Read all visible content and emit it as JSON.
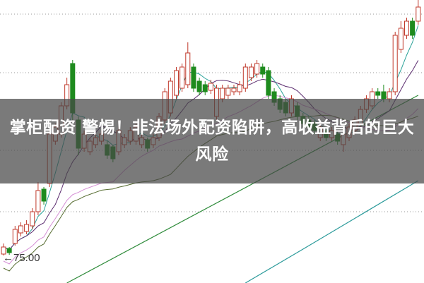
{
  "headline": "掌柜配资 警惕！非法场外配资陷阱，高收益背后的巨大风险",
  "chart_data": {
    "type": "candlestick",
    "title": "",
    "low_marker_label": "75.00",
    "low_marker_value": 75.0,
    "ylim": [
      71.5,
      111.6
    ],
    "grid": "horizontal dotted",
    "gridlines": [
      109.6,
      101.3,
      90.3,
      81.6
    ],
    "colors": {
      "up": "#c0392b",
      "down": "#1e8b1e",
      "ma5": "#2aa198",
      "ma10": "#5b2c6f",
      "ma20": "#d58fd5",
      "ma30": "#556b2f",
      "long1": "#2e8b3a",
      "long2": "#2a9a9a"
    },
    "ohlc": [
      [
        75.6,
        76.6,
        77.1,
        75.4
      ],
      [
        76.4,
        75.8,
        76.6,
        75.5
      ],
      [
        77.1,
        79.1,
        79.6,
        76.8
      ],
      [
        78.6,
        79.6,
        80.1,
        78.1
      ],
      [
        78.8,
        79.8,
        80.4,
        78.4
      ],
      [
        79.6,
        81.6,
        82.1,
        79.1
      ],
      [
        81.6,
        84.6,
        85.8,
        81.1
      ],
      [
        84.8,
        83.1,
        85.1,
        82.6
      ],
      [
        85.6,
        92.6,
        93.1,
        85.1
      ],
      [
        91.6,
        93.6,
        94.1,
        91.1
      ],
      [
        92.6,
        96.6,
        97.1,
        92.1
      ],
      [
        96.6,
        99.6,
        100.6,
        96.1
      ],
      [
        102.6,
        95.6,
        103.1,
        94.6
      ],
      [
        94.6,
        90.6,
        95.1,
        89.6
      ],
      [
        90.6,
        92.6,
        93.1,
        90.1
      ],
      [
        90.1,
        91.6,
        92.1,
        89.6
      ],
      [
        91.1,
        92.1,
        92.6,
        90.6
      ],
      [
        91.6,
        92.6,
        93.1,
        91.1
      ],
      [
        91.1,
        89.6,
        91.6,
        89.1
      ],
      [
        90.8,
        89.1,
        91.1,
        88.6
      ],
      [
        90.1,
        93.1,
        94.6,
        89.6
      ],
      [
        91.1,
        92.1,
        92.6,
        90.6
      ],
      [
        91.6,
        93.1,
        93.6,
        91.1
      ],
      [
        91.6,
        93.6,
        94.1,
        91.1
      ],
      [
        91.1,
        92.1,
        92.6,
        90.6
      ],
      [
        91.8,
        90.6,
        92.1,
        90.1
      ],
      [
        91.1,
        92.1,
        92.6,
        90.6
      ],
      [
        92.1,
        95.1,
        95.6,
        91.6
      ],
      [
        94.6,
        98.6,
        99.1,
        94.1
      ],
      [
        95.6,
        100.1,
        100.6,
        95.1
      ],
      [
        98.1,
        101.6,
        102.1,
        97.6
      ],
      [
        99.1,
        102.1,
        102.6,
        98.6
      ],
      [
        99.6,
        104.1,
        105.6,
        99.1
      ],
      [
        102.1,
        99.1,
        102.6,
        98.6
      ],
      [
        100.1,
        98.6,
        100.6,
        98.1
      ],
      [
        99.6,
        98.6,
        100.1,
        98.1
      ],
      [
        98.8,
        99.8,
        100.3,
        98.3
      ],
      [
        95.1,
        99.1,
        99.6,
        94.6
      ],
      [
        97.6,
        99.1,
        99.6,
        97.1
      ],
      [
        98.1,
        99.1,
        99.6,
        97.6
      ],
      [
        98.6,
        99.1,
        99.6,
        98.1
      ],
      [
        98.6,
        99.6,
        100.1,
        98.1
      ],
      [
        99.1,
        102.1,
        102.6,
        98.6
      ],
      [
        100.6,
        102.1,
        102.6,
        100.1
      ],
      [
        101.1,
        102.6,
        103.1,
        100.6
      ],
      [
        102.1,
        101.1,
        102.6,
        100.6
      ],
      [
        101.6,
        98.1,
        102.1,
        97.6
      ],
      [
        98.6,
        97.1,
        99.1,
        96.6
      ],
      [
        97.6,
        96.1,
        98.1,
        95.6
      ],
      [
        97.1,
        95.6,
        97.6,
        95.1
      ],
      [
        95.6,
        97.6,
        98.1,
        95.1
      ],
      [
        96.6,
        95.1,
        97.1,
        94.6
      ],
      [
        95.1,
        94.1,
        95.6,
        93.6
      ],
      [
        94.6,
        93.6,
        95.1,
        93.1
      ],
      [
        94.1,
        93.1,
        94.6,
        92.6
      ],
      [
        92.1,
        93.6,
        94.1,
        91.6
      ],
      [
        93.1,
        92.1,
        93.6,
        91.6
      ],
      [
        92.1,
        93.1,
        93.6,
        91.6
      ],
      [
        92.6,
        91.6,
        93.1,
        91.1
      ],
      [
        91.1,
        92.6,
        93.1,
        90.1
      ],
      [
        92.1,
        93.6,
        94.1,
        91.6
      ],
      [
        93.1,
        94.6,
        95.1,
        92.6
      ],
      [
        94.1,
        96.1,
        96.6,
        93.6
      ],
      [
        96.1,
        97.6,
        98.1,
        95.6
      ],
      [
        96.6,
        98.6,
        99.1,
        96.1
      ],
      [
        98.6,
        98.1,
        99.1,
        97.6
      ],
      [
        98.6,
        97.6,
        99.6,
        97.1
      ],
      [
        97.6,
        98.6,
        99.1,
        97.1
      ],
      [
        98.6,
        106.6,
        107.1,
        98.1
      ],
      [
        104.6,
        107.6,
        108.6,
        104.1
      ],
      [
        106.6,
        108.6,
        109.1,
        106.1
      ],
      [
        108.6,
        106.6,
        109.1,
        106.1
      ],
      [
        108.6,
        110.6,
        111.6,
        108.1
      ]
    ],
    "long_averages": [
      {
        "key": "long1",
        "values": [
          [
            11,
            71.5
          ],
          [
            72,
            98.1
          ]
        ]
      },
      {
        "key": "long2",
        "values": [
          [
            42,
            71.5
          ],
          [
            52,
            76.3
          ],
          [
            72,
            86.0
          ]
        ]
      }
    ]
  }
}
